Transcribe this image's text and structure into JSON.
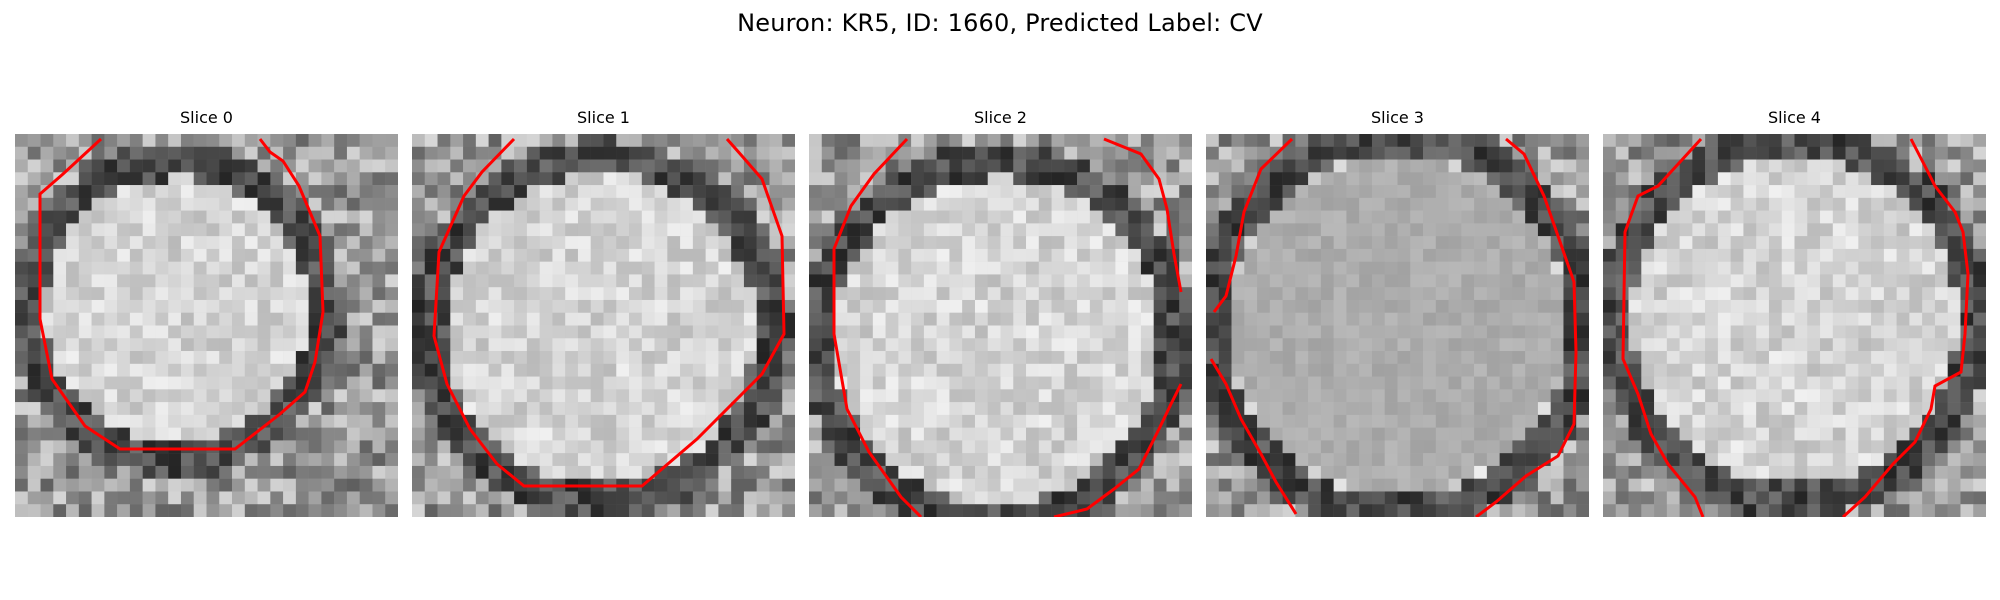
{
  "figure": {
    "title": "Neuron: KR5, ID: 1660, Predicted Label: CV"
  },
  "panels": [
    {
      "title": "Slice 0"
    },
    {
      "title": "Slice 1"
    },
    {
      "title": "Slice 2"
    },
    {
      "title": "Slice 3"
    },
    {
      "title": "Slice 4"
    }
  ],
  "colors": {
    "contour": "#ff0000",
    "background": "#ffffff",
    "membrane": "#3a3a3a",
    "interior": "#d9d9d9"
  },
  "image_style": {
    "colormap": "grayscale",
    "grid_resolution": 30
  }
}
